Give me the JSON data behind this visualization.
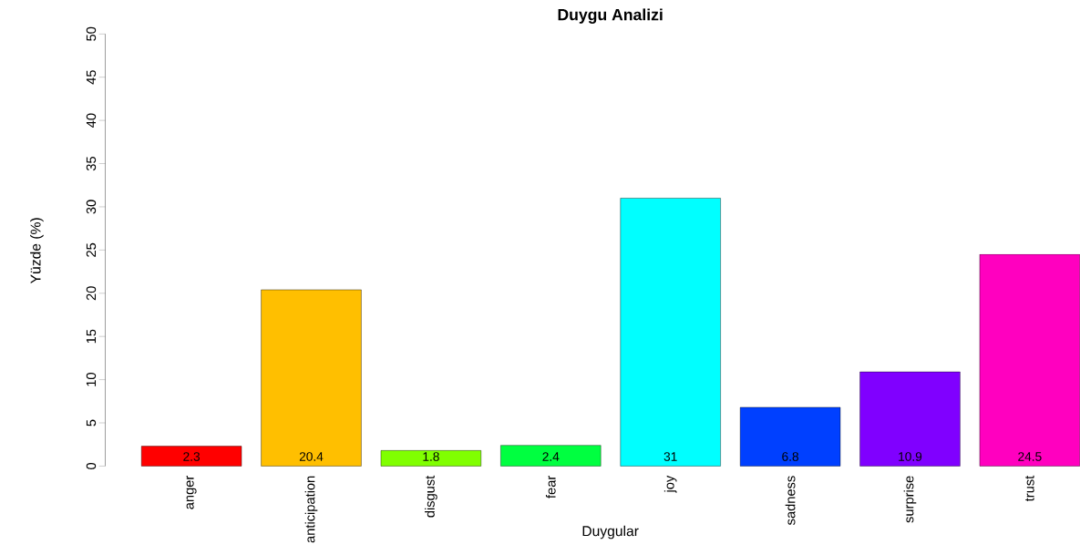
{
  "chart_data": {
    "type": "bar",
    "title": "Duygu Analizi",
    "xlabel": "Duygular",
    "ylabel": "Yüzde (%)",
    "categories": [
      "anger",
      "anticipation",
      "disgust",
      "fear",
      "joy",
      "sadness",
      "surprise",
      "trust"
    ],
    "values": [
      2.3,
      20.4,
      1.8,
      2.4,
      31,
      6.8,
      10.9,
      24.5
    ],
    "colors": [
      "#ff0000",
      "#ffbf00",
      "#80ff00",
      "#00ff40",
      "#00ffff",
      "#0040ff",
      "#8000ff",
      "#ff00bf"
    ],
    "ylim": [
      0,
      50
    ],
    "yticks": [
      0,
      5,
      10,
      15,
      20,
      25,
      30,
      35,
      40,
      45,
      50
    ],
    "data_labels": true,
    "grid": false
  }
}
